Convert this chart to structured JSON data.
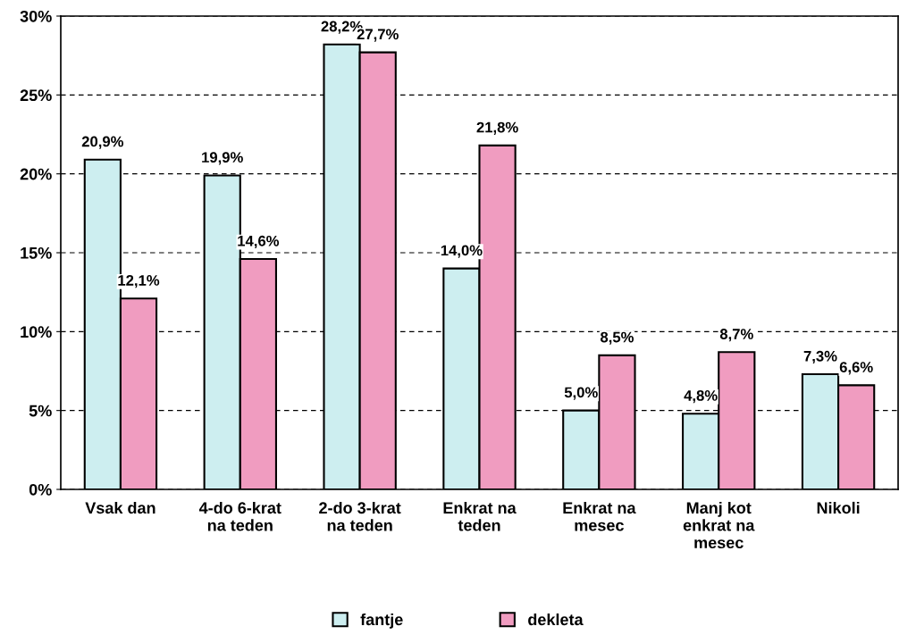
{
  "chart_data": {
    "type": "bar",
    "categories": [
      "Vsak dan",
      "4-do 6-krat\nna teden",
      "2-do 3-krat\nna teden",
      "Enkrat na\nteden",
      "Enkrat na\nmesec",
      "Manj kot\nenkrat na\nmesec",
      "Nikoli"
    ],
    "series": [
      {
        "name": "fantje",
        "color": "#cdeef0",
        "values": [
          20.9,
          19.9,
          28.2,
          14.0,
          5.0,
          4.8,
          7.3
        ],
        "value_labels": [
          "20,9%",
          "19,9%",
          "28,2%",
          "14,0%",
          "5,0%",
          "4,8%",
          "7,3%"
        ]
      },
      {
        "name": "dekleta",
        "color": "#f09cc0",
        "values": [
          12.1,
          14.6,
          27.7,
          21.8,
          8.5,
          8.7,
          6.6
        ],
        "value_labels": [
          "12,1%",
          "14,6%",
          "27,7%",
          "21,8%",
          "8,5%",
          "8,7%",
          "6,6%"
        ]
      }
    ],
    "ylim": [
      0,
      30
    ],
    "yticks": [
      {
        "value": 0,
        "label": "0%"
      },
      {
        "value": 5,
        "label": "5%"
      },
      {
        "value": 10,
        "label": "10%"
      },
      {
        "value": 15,
        "label": "15%"
      },
      {
        "value": 20,
        "label": "20%"
      },
      {
        "value": 25,
        "label": "25%"
      },
      {
        "value": 30,
        "label": "30%"
      }
    ],
    "grid": "y",
    "legend": "bottom"
  }
}
